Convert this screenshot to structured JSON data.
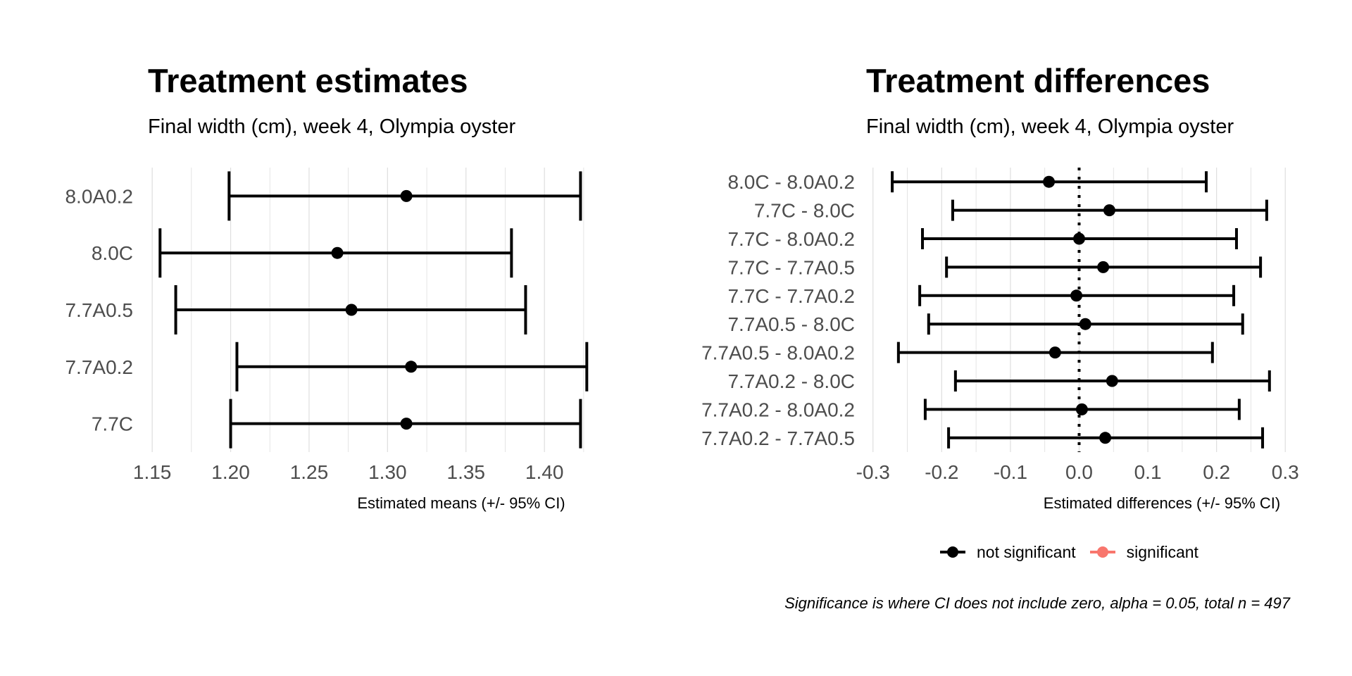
{
  "chart_data": [
    {
      "type": "errorbar",
      "title": "Treatment estimates",
      "subtitle": "Final width (cm), week 4, Olympia oyster",
      "xlabel": "Estimated means (+/- 95% CI)",
      "ylabel": "",
      "xlim": [
        1.145,
        1.43
      ],
      "xticks": [
        "1.15",
        "1.20",
        "1.25",
        "1.30",
        "1.35",
        "1.40"
      ],
      "xtick_values": [
        1.15,
        1.2,
        1.25,
        1.3,
        1.35,
        1.4
      ],
      "grid": true,
      "categories": [
        "8.0A0.2",
        "8.0C",
        "7.7A0.5",
        "7.7A0.2",
        "7.7C"
      ],
      "estimates": [
        1.312,
        1.268,
        1.277,
        1.315,
        1.312
      ],
      "lower": [
        1.199,
        1.155,
        1.165,
        1.204,
        1.2
      ],
      "upper": [
        1.423,
        1.379,
        1.388,
        1.427,
        1.423
      ]
    },
    {
      "type": "errorbar",
      "title": "Treatment differences",
      "subtitle": "Final width (cm), week 4, Olympia oyster",
      "xlabel": "Estimated differences (+/- 95% CI)",
      "ylabel": "",
      "xlim": [
        -0.31,
        0.31
      ],
      "xticks": [
        "-0.3",
        "-0.2",
        "-0.1",
        "0.0",
        "0.1",
        "0.2",
        "0.3"
      ],
      "xtick_values": [
        -0.3,
        -0.2,
        -0.1,
        0.0,
        0.1,
        0.2,
        0.3
      ],
      "grid": true,
      "reference_line": 0,
      "categories": [
        "8.0C - 8.0A0.2",
        "7.7C - 8.0C",
        "7.7C - 8.0A0.2",
        "7.7C - 7.7A0.5",
        "7.7C - 7.7A0.2",
        "7.7A0.5 - 8.0C",
        "7.7A0.5 - 8.0A0.2",
        "7.7A0.2 - 8.0C",
        "7.7A0.2 - 8.0A0.2",
        "7.7A0.2 - 7.7A0.5"
      ],
      "estimates": [
        -0.044,
        0.044,
        0.0,
        0.035,
        -0.004,
        0.009,
        -0.035,
        0.048,
        0.004,
        0.038
      ],
      "lower": [
        -0.272,
        -0.184,
        -0.228,
        -0.193,
        -0.232,
        -0.219,
        -0.263,
        -0.18,
        -0.224,
        -0.19
      ],
      "upper": [
        0.185,
        0.273,
        0.229,
        0.264,
        0.225,
        0.238,
        0.194,
        0.277,
        0.233,
        0.267
      ],
      "significant": [
        false,
        false,
        false,
        false,
        false,
        false,
        false,
        false,
        false,
        false
      ],
      "legend": {
        "items": [
          {
            "label": "not significant",
            "color": "#000000"
          },
          {
            "label": "significant",
            "color": "#f8766d"
          }
        ],
        "placement": "bottom"
      },
      "caption": "Significance is where CI does not include zero, alpha = 0.05, total n = 497"
    }
  ],
  "colors": {
    "mark": "#000000",
    "significant": "#f8766d",
    "grid": "#dedede",
    "axis_text": "#4d4d4d"
  }
}
